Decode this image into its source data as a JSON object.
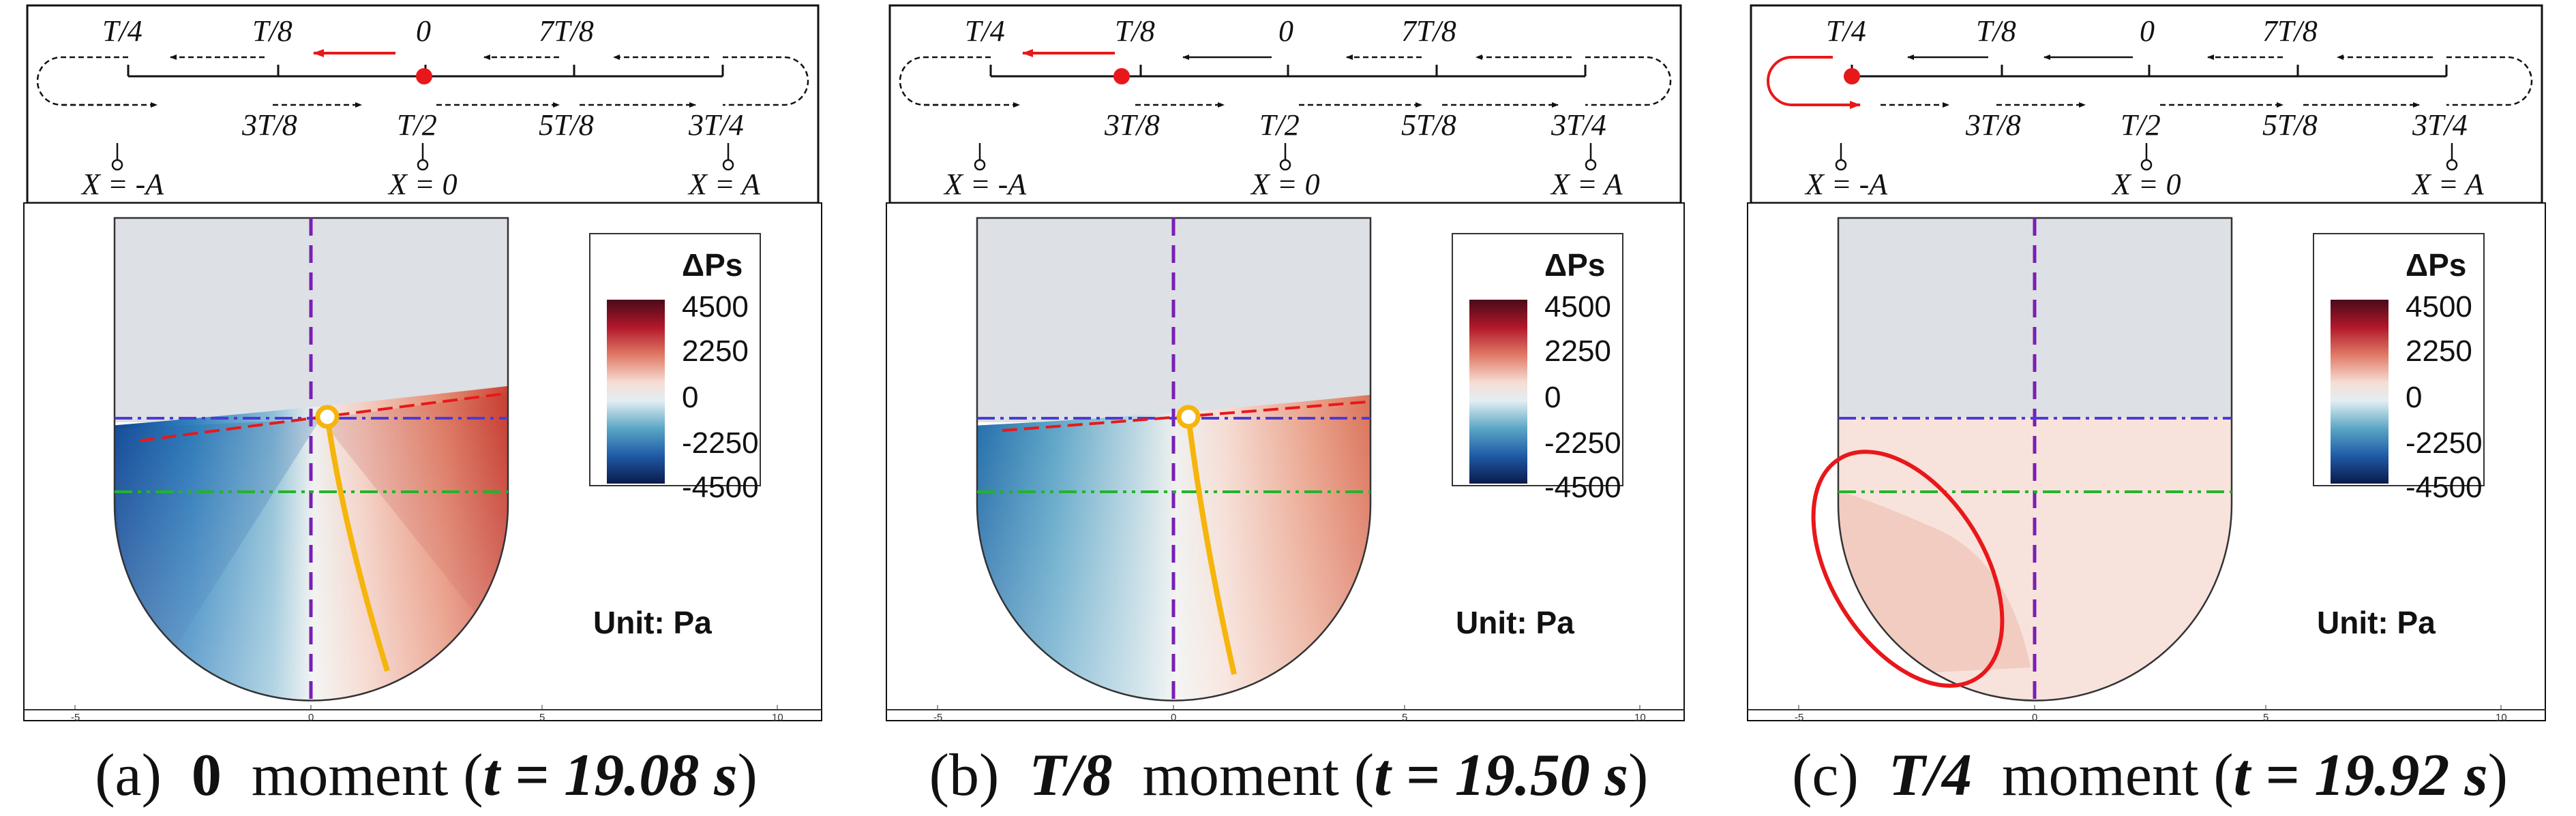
{
  "schedule": {
    "top_labels": [
      "T/4",
      "T/8",
      "0",
      "7T/8"
    ],
    "bottom_labels": [
      "3T/8",
      "T/2",
      "5T/8",
      "3T/4"
    ],
    "positions": [
      "X = -A",
      "X = 0",
      "X = A"
    ]
  },
  "legend": {
    "title": "ΔPs",
    "ticks": [
      "4500",
      "2250",
      "0",
      "-2250",
      "-4500"
    ],
    "unit": "Unit: Pa"
  },
  "axis_ticks": [
    "-5",
    "0",
    "5",
    "10"
  ],
  "colors": {
    "positive": "#b2182b",
    "negative": "#2166ac",
    "marker": "#e8181a",
    "streamline": "#f5b50c",
    "centerline": "#7a1fb5",
    "free_surface": "#4b3bd6",
    "reference": "#22b42a"
  },
  "panels": [
    {
      "letter": "(a)",
      "moment": "0",
      "moment_is_symbol": false,
      "time": "t = 19.08 s"
    },
    {
      "letter": "(b)",
      "moment": "T/8",
      "moment_is_symbol": true,
      "time": "t = 19.50 s"
    },
    {
      "letter": "(c)",
      "moment": "T/4",
      "moment_is_symbol": true,
      "time": "t = 19.92 s"
    }
  ]
}
